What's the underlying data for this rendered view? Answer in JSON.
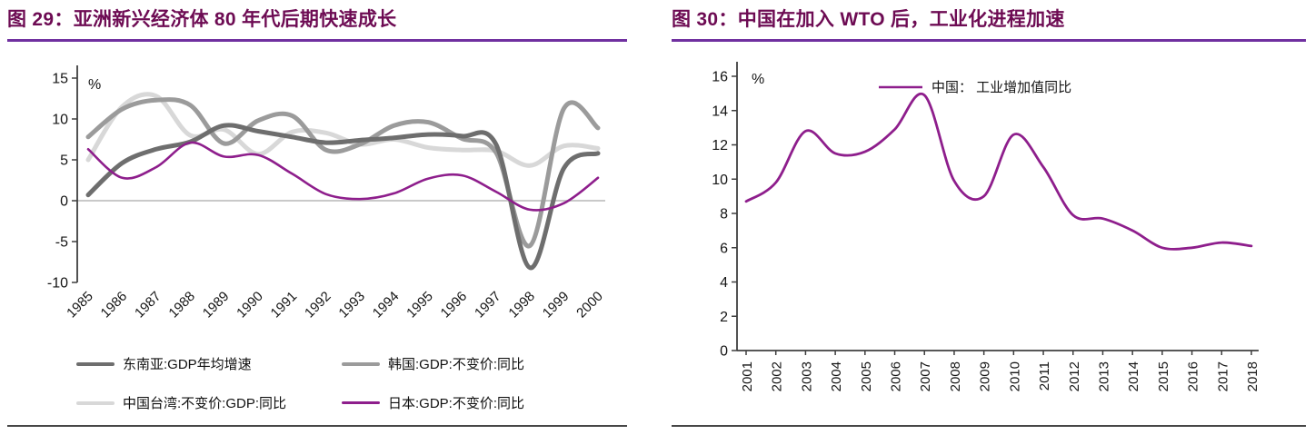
{
  "theme": {
    "title_color": "#6d0b53",
    "rule_color": "#7030a0",
    "panel_border": "#474747",
    "axis_color": "#3f3f3f",
    "zero_line_color": "#c9c9c9",
    "purple_accent": "#8e1e8c",
    "dark_gray_series": "#6e6e6e",
    "mid_gray_series": "#9b9b9b",
    "light_gray_series": "#d8d8d8"
  },
  "figures": [
    {
      "title": "图 29：亚洲新兴经济体 80 年代后期快速成长"
    },
    {
      "title": "图 30：中国在加入 WTO 后，工业化进程加速"
    }
  ],
  "chart_data": [
    {
      "type": "line",
      "title": "图 29：亚洲新兴经济体 80 年代后期快速成长",
      "ylabel": "%",
      "xlabel": "",
      "ylim": [
        -10,
        15
      ],
      "yticks": [
        15,
        10,
        5,
        0,
        -5,
        -10
      ],
      "grid": false,
      "zero_line": true,
      "legend_position": "bottom",
      "x": [
        1985,
        1986,
        1987,
        1988,
        1989,
        1990,
        1991,
        1992,
        1993,
        1994,
        1995,
        1996,
        1997,
        1998,
        1999,
        2000
      ],
      "series": [
        {
          "name": "东南亚:GDP年均增速",
          "color": "#6e6e6e",
          "width": 5,
          "zorder": 2,
          "values": [
            0.7,
            4.6,
            6.3,
            7.2,
            9.2,
            8.5,
            7.8,
            7.1,
            7.4,
            7.7,
            8.1,
            7.9,
            6.9,
            -8.2,
            4.0,
            5.8
          ]
        },
        {
          "name": "韩国:GDP:不变价:同比",
          "color": "#9b9b9b",
          "width": 5,
          "zorder": 1,
          "values": [
            7.8,
            11.2,
            12.3,
            11.7,
            7.0,
            9.8,
            10.4,
            6.2,
            6.9,
            9.2,
            9.6,
            7.6,
            5.9,
            -5.5,
            11.3,
            8.9
          ]
        },
        {
          "name": "中国台湾:不变价:GDP:同比",
          "color": "#d8d8d8",
          "width": 5,
          "zorder": 0,
          "values": [
            5.0,
            11.5,
            12.8,
            8.0,
            8.7,
            5.7,
            8.4,
            8.3,
            6.9,
            7.5,
            6.5,
            6.2,
            6.1,
            4.3,
            6.7,
            6.4
          ]
        },
        {
          "name": "日本:GDP:不变价:同比",
          "color": "#8e1e8c",
          "width": 2.6,
          "zorder": 3,
          "values": [
            6.3,
            2.8,
            4.1,
            7.1,
            5.4,
            5.6,
            3.3,
            0.8,
            0.2,
            0.9,
            2.7,
            3.1,
            1.1,
            -1.1,
            -0.3,
            2.8
          ]
        }
      ]
    },
    {
      "type": "line",
      "title": "图 30：中国在加入 WTO 后，工业化进程加速",
      "ylabel": "%",
      "xlabel": "",
      "ylim": [
        0,
        16
      ],
      "yticks": [
        16,
        14,
        12,
        10,
        8,
        6,
        4,
        2,
        0
      ],
      "grid": false,
      "zero_line": false,
      "legend_position": "top",
      "inline_legend": "中国： 工业增加值同比",
      "x": [
        2001,
        2002,
        2003,
        2004,
        2005,
        2006,
        2007,
        2008,
        2009,
        2010,
        2011,
        2012,
        2013,
        2014,
        2015,
        2016,
        2017,
        2018
      ],
      "series": [
        {
          "name": "中国： 工业增加值同比",
          "color": "#8e1e8c",
          "width": 2.8,
          "zorder": 0,
          "values": [
            8.7,
            9.8,
            12.8,
            11.5,
            11.6,
            12.9,
            14.9,
            9.9,
            9.0,
            12.6,
            10.7,
            7.9,
            7.7,
            7.0,
            6.0,
            6.0,
            6.3,
            6.1
          ]
        }
      ]
    }
  ]
}
